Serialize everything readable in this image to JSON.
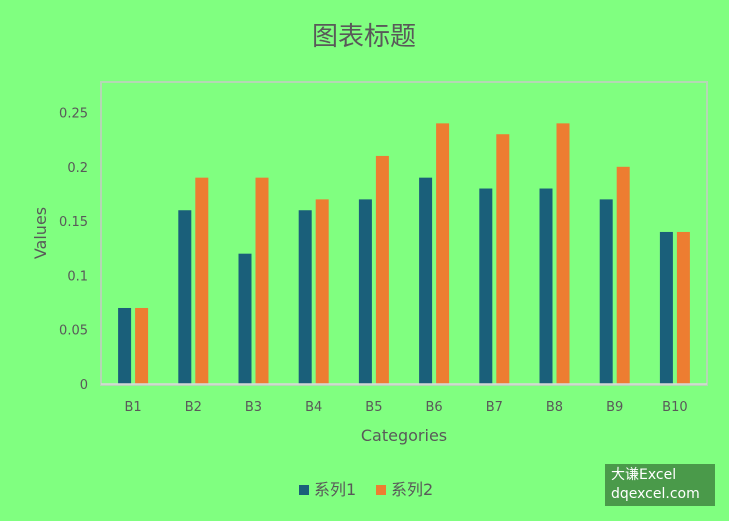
{
  "chart_data": {
    "type": "bar",
    "title": "图表标题",
    "xlabel": "Categories",
    "ylabel": "Values",
    "categories": [
      "B1",
      "B2",
      "B3",
      "B4",
      "B5",
      "B6",
      "B7",
      "B8",
      "B9",
      "B10"
    ],
    "series": [
      {
        "name": "系列1",
        "color": "#1a5f7a",
        "values": [
          0.07,
          0.16,
          0.12,
          0.16,
          0.17,
          0.19,
          0.18,
          0.18,
          0.17,
          0.14
        ]
      },
      {
        "name": "系列2",
        "color": "#ed7d31",
        "values": [
          0.07,
          0.19,
          0.19,
          0.17,
          0.21,
          0.24,
          0.23,
          0.24,
          0.2,
          0.14
        ]
      }
    ],
    "ylim": [
      0,
      0.25
    ],
    "yticks": [
      "0",
      "0.05",
      "0.1",
      "0.15",
      "0.2",
      "0.25"
    ],
    "grid": false,
    "legend": "bottom",
    "background": "#80ff80"
  },
  "watermark": {
    "line1": "大谦Excel",
    "line2": "dqexcel.com"
  }
}
